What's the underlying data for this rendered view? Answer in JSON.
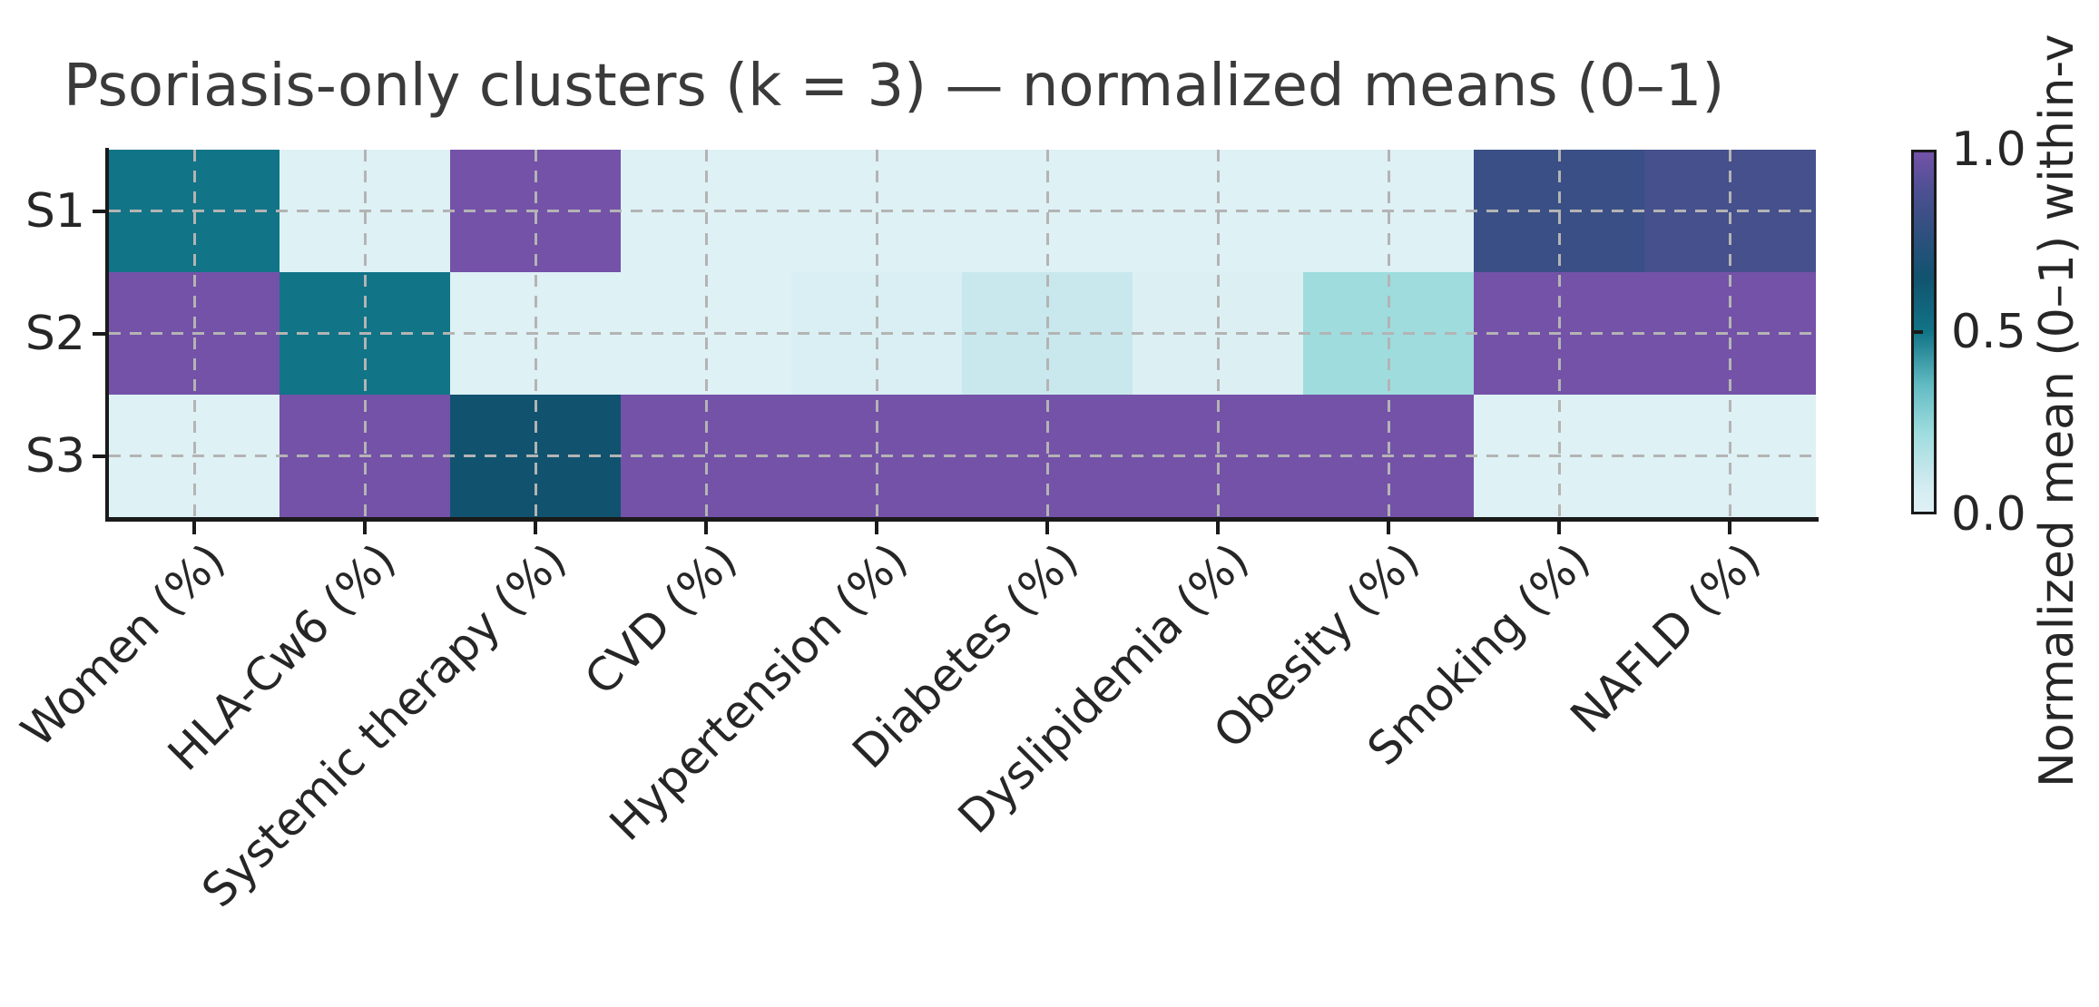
{
  "title": "Psoriasis-only clusters (k = 3) — normalized means (0–1)",
  "chart_data": {
    "type": "heatmap",
    "rows": [
      "S1",
      "S2",
      "S3"
    ],
    "columns": [
      "Women (%)",
      "HLA-Cw6 (%)",
      "Systemic therapy (%)",
      "CVD (%)",
      "Hypertension (%)",
      "Diabetes (%)",
      "Dyslipidemia (%)",
      "Obesity (%)",
      "Smoking (%)",
      "NAFLD (%)"
    ],
    "values": [
      [
        0.5,
        0.0,
        1.0,
        0.0,
        0.0,
        0.0,
        0.0,
        0.0,
        0.82,
        0.86
      ],
      [
        1.0,
        0.5,
        0.0,
        0.0,
        0.04,
        0.1,
        0.02,
        0.22,
        1.0,
        1.0
      ],
      [
        0.0,
        1.0,
        0.65,
        1.0,
        1.0,
        1.0,
        1.0,
        1.0,
        0.0,
        0.0
      ]
    ],
    "vmin": 0.0,
    "vmax": 1.0,
    "grid": "dashed",
    "grid_color": "#b4b4b4",
    "colormap_stops": [
      [
        0.0,
        "#def1f5"
      ],
      [
        0.05,
        "#d8eef3"
      ],
      [
        0.1,
        "#c9e8ed"
      ],
      [
        0.22,
        "#9edcde"
      ],
      [
        0.35,
        "#63bcc3"
      ],
      [
        0.5,
        "#117487"
      ],
      [
        0.65,
        "#11536f"
      ],
      [
        0.82,
        "#3a4f85"
      ],
      [
        0.9,
        "#4f5094"
      ],
      [
        1.0,
        "#7452a8"
      ]
    ],
    "colorbar": {
      "ticks": [
        "1.0",
        "0.5",
        "0.0"
      ],
      "label": "Normalized mean (0–1) within-v"
    }
  }
}
